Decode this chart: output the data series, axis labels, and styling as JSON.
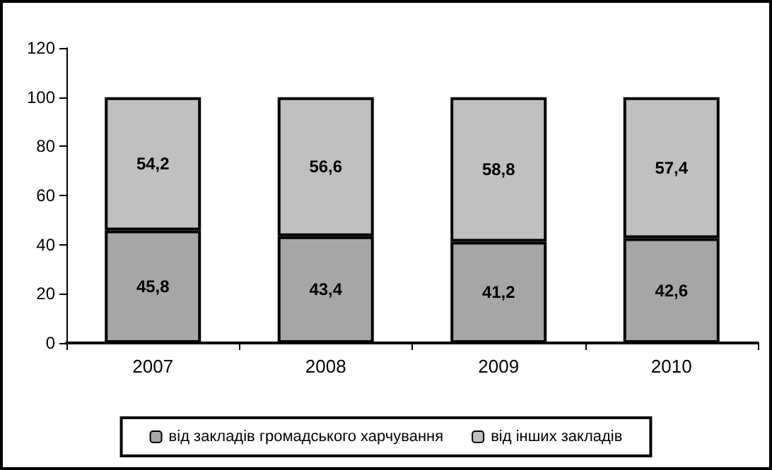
{
  "chart_data": {
    "type": "bar",
    "stacked": true,
    "categories": [
      "2007",
      "2008",
      "2009",
      "2010"
    ],
    "series": [
      {
        "name": "від закладів громадського харчування",
        "color": "#a6a6a6",
        "values": [
          45.8,
          43.4,
          41.2,
          42.6
        ],
        "value_labels": [
          "45,8",
          "43,4",
          "41,2",
          "42,6"
        ]
      },
      {
        "name": "від інших закладів",
        "color": "#c0c0c0",
        "values": [
          54.2,
          56.6,
          58.8,
          57.4
        ],
        "value_labels": [
          "54,2",
          "56,6",
          "58,8",
          "57,4"
        ]
      }
    ],
    "ylim": [
      0,
      120
    ],
    "yticks": [
      0,
      20,
      40,
      60,
      80,
      100,
      120
    ],
    "grid": false,
    "legend": "bottom"
  }
}
